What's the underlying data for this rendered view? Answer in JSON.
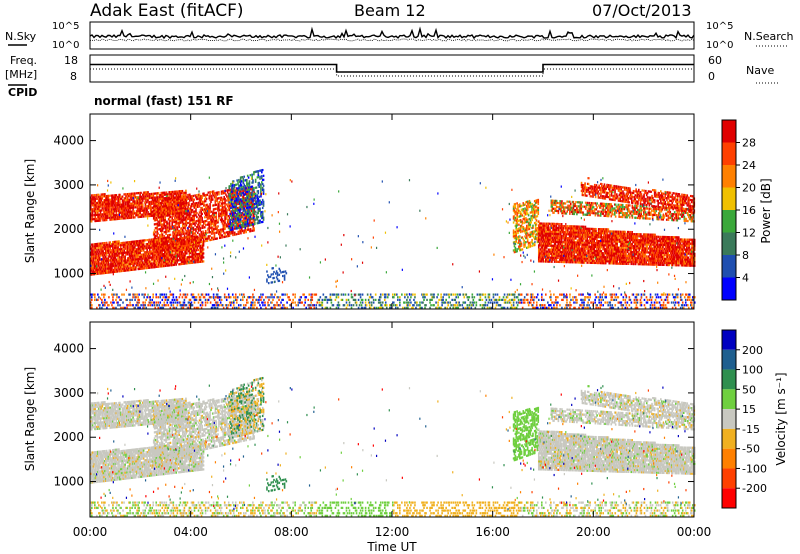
{
  "header": {
    "station": "Adak East (fitACF)",
    "beam": "Beam 12",
    "date": "07/Oct/2013"
  },
  "noise_panel": {
    "left_label": "N.Sky",
    "right_label": "N.Search",
    "left_ticks": [
      "10^5",
      "10^0"
    ],
    "right_ticks": [
      "10^5",
      "10^0"
    ]
  },
  "freq_panel": {
    "left_label_1": "Freq.",
    "left_label_2": "[MHz]",
    "right_label": "Nave",
    "cpid_label": "CPID",
    "left_ticks": [
      "18",
      "8"
    ],
    "right_ticks": [
      "60",
      "0"
    ],
    "cpid_text": "normal (fast) 151 RF"
  },
  "x_axis": {
    "label": "Time UT",
    "ticks": [
      "00:00",
      "04:00",
      "08:00",
      "12:00",
      "16:00",
      "20:00",
      "00:00"
    ]
  },
  "power_panel": {
    "ylabel": "Slant Range [km]",
    "yticks": [
      "1000",
      "2000",
      "3000",
      "4000"
    ],
    "colorbar_label": "Power [dB]",
    "colorbar_ticks": [
      "4",
      "8",
      "12",
      "16",
      "20",
      "24",
      "28"
    ],
    "colors": [
      "#0000ff",
      "#1f4fb0",
      "#3a7a5a",
      "#3aa83a",
      "#f0c000",
      "#ff8000",
      "#ff4000",
      "#e00000"
    ]
  },
  "velocity_panel": {
    "ylabel": "Slant Range [km]",
    "yticks": [
      "1000",
      "2000",
      "3000",
      "4000"
    ],
    "colorbar_label": "Velocity [m s⁻¹]",
    "colorbar_ticks": [
      "200",
      "100",
      "50",
      "15",
      "-15",
      "-50",
      "-100",
      "-200"
    ],
    "colors": [
      "#0000c0",
      "#1f5f8f",
      "#2f8f4f",
      "#6fcf3f",
      "#c8c8c0",
      "#f0b020",
      "#ff8000",
      "#ff4000",
      "#ff0000"
    ]
  },
  "chart_data": [
    {
      "type": "line",
      "title": "N.Sky / N.Search",
      "xlabel": "Time UT",
      "xlim": [
        0,
        24
      ],
      "ylim": [
        "10^0",
        "10^5"
      ],
      "log_y": true
    },
    {
      "type": "line",
      "title": "Freq. [MHz] / Nave",
      "xlabel": "Time UT",
      "xlim": [
        0,
        24
      ],
      "ylim": [
        8,
        18
      ],
      "series": [
        {
          "name": "Freq. [MHz]",
          "x": [
            0,
            9.8,
            9.8,
            18,
            18,
            24
          ],
          "values": [
            14.5,
            14.5,
            11.7,
            11.7,
            14.5,
            14.5
          ]
        }
      ]
    },
    {
      "type": "heatmap",
      "title": "Power [dB]",
      "xlabel": "Time UT",
      "ylabel": "Slant Range [km]",
      "xlim": [
        0,
        24
      ],
      "ylim": [
        200,
        4600
      ],
      "colorbar_range": [
        0,
        30
      ]
    },
    {
      "type": "heatmap",
      "title": "Velocity [m s⁻¹]",
      "xlabel": "Time UT",
      "ylabel": "Slant Range [km]",
      "xlim": [
        0,
        24
      ],
      "ylim": [
        200,
        4600
      ],
      "colorbar_range": [
        -250,
        250
      ]
    }
  ]
}
